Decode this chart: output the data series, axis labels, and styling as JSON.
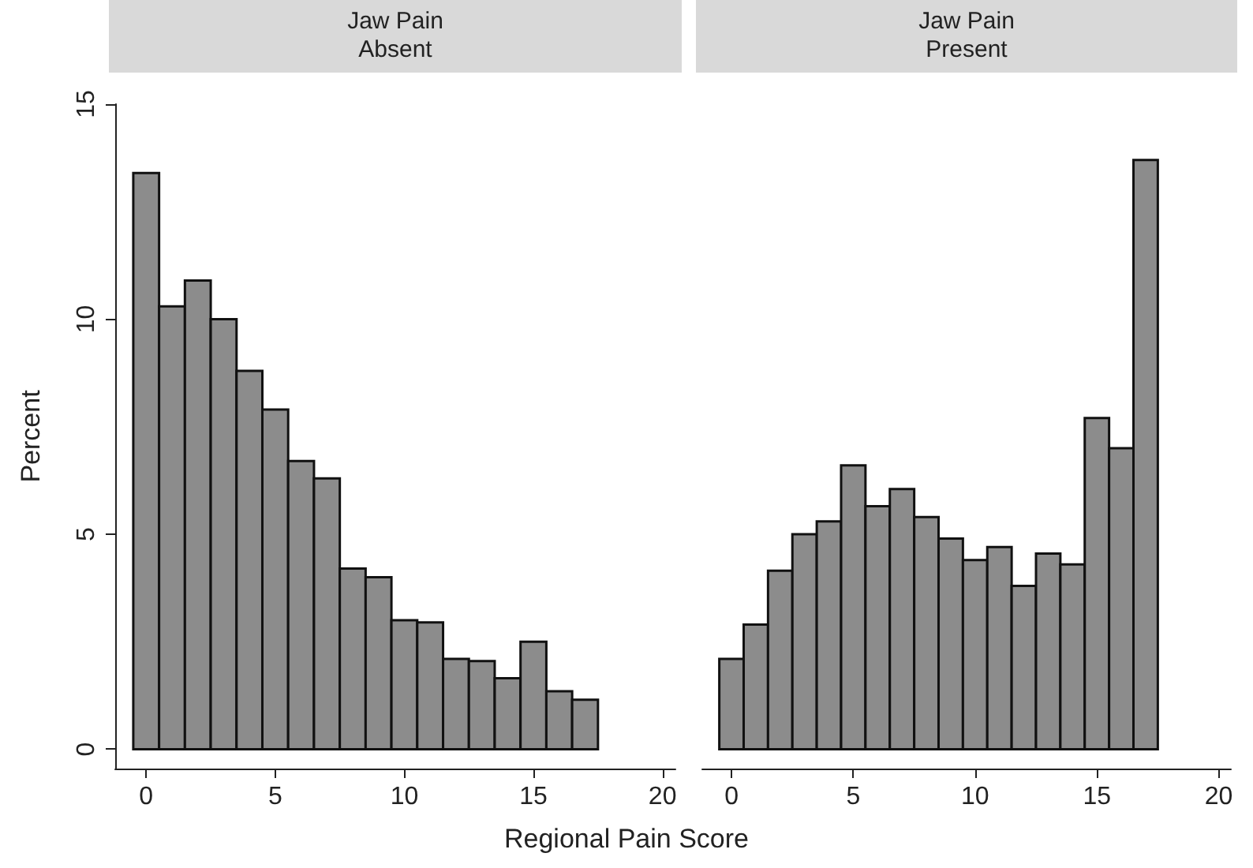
{
  "chart_data": [
    {
      "type": "histogram",
      "title": "Jaw Pain\nAbsent",
      "xlabel": "Regional Pain Score",
      "ylabel": "Percent",
      "color": "#8c8c8c",
      "bins": [
        -0.5,
        0.5,
        1.5,
        2.5,
        3.5,
        4.5,
        5.5,
        6.5,
        7.5,
        8.5,
        9.5,
        10.5,
        11.5,
        12.5,
        13.5,
        14.5,
        15.5,
        16.5,
        17.5
      ],
      "values": [
        13.4,
        10.3,
        10.9,
        10.0,
        8.8,
        7.9,
        6.7,
        6.3,
        4.2,
        4.0,
        3.0,
        2.95,
        2.1,
        2.05,
        1.65,
        2.5,
        1.35,
        1.15
      ],
      "xlim": [
        -1.2,
        20.5
      ],
      "xticks": [
        0,
        5,
        10,
        15,
        20
      ],
      "ylim": [
        -0.45,
        15
      ],
      "yticks": [
        0,
        5,
        10,
        15
      ],
      "grid": false
    },
    {
      "type": "histogram",
      "title": "Jaw Pain\nPresent",
      "color": "#8c8c8c",
      "bins": [
        -0.5,
        0.5,
        1.5,
        2.5,
        3.5,
        4.5,
        5.5,
        6.5,
        7.5,
        8.5,
        9.5,
        10.5,
        11.5,
        12.5,
        13.5,
        14.5,
        15.5,
        16.5,
        17.5
      ],
      "values": [
        2.1,
        2.9,
        4.15,
        5.0,
        5.3,
        6.6,
        5.65,
        6.05,
        5.4,
        4.9,
        4.4,
        4.7,
        3.8,
        4.55,
        4.3,
        7.7,
        7.0,
        13.7
      ],
      "xlim": [
        -1.2,
        20.5
      ],
      "xticks": [
        0,
        5,
        10,
        15,
        20
      ],
      "ylim": [
        -0.45,
        15
      ],
      "yticks": [
        0,
        5,
        10,
        15
      ],
      "grid": false,
      "tick_labels": "x"
    }
  ]
}
